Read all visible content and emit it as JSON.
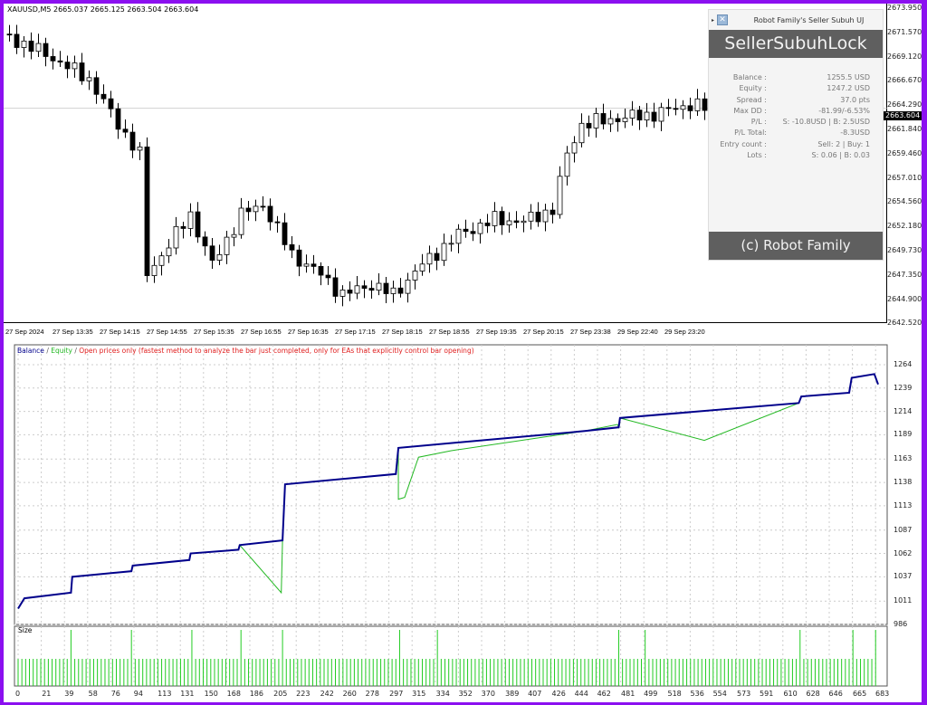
{
  "chart": {
    "symbol_line": "XAUUSD,M5  2665.037 2665.125 2663.504 2663.604",
    "current_price": "2663.604",
    "price_axis": [
      "2673.950",
      "2671.570",
      "2669.120",
      "2666.670",
      "2664.290",
      "2661.840",
      "2659.460",
      "2657.010",
      "2654.560",
      "2652.180",
      "2649.730",
      "2647.350",
      "2644.900",
      "2642.520"
    ],
    "time_axis": [
      "27 Sep 2024",
      "27 Sep 13:35",
      "27 Sep 14:15",
      "27 Sep 14:55",
      "27 Sep 15:35",
      "27 Sep 16:55",
      "27 Sep 16:35",
      "27 Sep 17:15",
      "27 Sep 18:15",
      "27 Sep 18:55",
      "27 Sep 19:35",
      "27 Sep 20:15",
      "27 Sep 23:38",
      "29 Sep 22:40",
      "29 Sep 23:20"
    ],
    "price_path": [
      [
        0,
        2671
      ],
      [
        6,
        2669
      ],
      [
        12,
        2666.5
      ],
      [
        16,
        2662
      ],
      [
        19,
        2659
      ],
      [
        20,
        2647
      ],
      [
        23,
        2650
      ],
      [
        26,
        2653
      ],
      [
        29,
        2648
      ],
      [
        33,
        2653
      ],
      [
        36,
        2654
      ],
      [
        40,
        2649
      ],
      [
        44,
        2647
      ],
      [
        47,
        2645
      ],
      [
        51,
        2646
      ],
      [
        54,
        2645
      ],
      [
        58,
        2648
      ],
      [
        63,
        2651
      ],
      [
        68,
        2652.5
      ],
      [
        72,
        2652.3
      ],
      [
        76,
        2653.5
      ],
      [
        78,
        2659
      ],
      [
        80,
        2662
      ],
      [
        85,
        2662.6
      ],
      [
        90,
        2663
      ],
      [
        95,
        2664
      ],
      [
        97,
        2663.6
      ]
    ]
  },
  "panel": {
    "title": "Robot Family's Seller Subuh UJ",
    "name": "SellerSubuhLock",
    "stats": [
      {
        "label": "Balance :",
        "value": "1255.5 USD"
      },
      {
        "label": "Equity :",
        "value": "1247.2 USD"
      },
      {
        "label": "Spread :",
        "value": "37.0 pts"
      },
      {
        "label": "Max DD :",
        "value": "-81.99/-6.53%"
      },
      {
        "label": "P/L :",
        "value": "S: -10.8USD | B: 2.5USD"
      },
      {
        "label": "P/L Total:",
        "value": "-8.3USD"
      },
      {
        "label": "Entry count :",
        "value": "Sell: 2 | Buy: 1"
      },
      {
        "label": "Lots :",
        "value": "S: 0.06 | B: 0.03"
      }
    ],
    "footer": "(c) Robot Family"
  },
  "tester": {
    "legend_balance": "Balance",
    "legend_equity": "Equity",
    "legend_rest": "Open prices only (fastest method to analyze the bar just completed, only for EAs that explicitly control bar opening)",
    "size_label": "Size",
    "y_axis": [
      "1264",
      "1239",
      "1214",
      "1189",
      "1163",
      "1138",
      "1113",
      "1087",
      "1062",
      "1037",
      "1011",
      "986"
    ],
    "x_axis": [
      "0",
      "21",
      "39",
      "58",
      "76",
      "94",
      "113",
      "131",
      "150",
      "168",
      "186",
      "205",
      "223",
      "242",
      "260",
      "278",
      "297",
      "315",
      "334",
      "352",
      "370",
      "389",
      "407",
      "426",
      "444",
      "462",
      "481",
      "499",
      "518",
      "536",
      "554",
      "573",
      "591",
      "610",
      "628",
      "646",
      "665",
      "683"
    ],
    "ylim": [
      986,
      1264
    ],
    "balance": [
      [
        0,
        1003
      ],
      [
        5,
        1014
      ],
      [
        42,
        1020
      ],
      [
        43,
        1037
      ],
      [
        90,
        1043
      ],
      [
        91,
        1049
      ],
      [
        136,
        1055
      ],
      [
        137,
        1062
      ],
      [
        175,
        1066
      ],
      [
        176,
        1071
      ],
      [
        210,
        1076
      ],
      [
        212,
        1136
      ],
      [
        300,
        1147
      ],
      [
        302,
        1175
      ],
      [
        450,
        1193
      ],
      [
        477,
        1197
      ],
      [
        478,
        1207
      ],
      [
        620,
        1223
      ],
      [
        622,
        1230
      ],
      [
        660,
        1234
      ],
      [
        662,
        1250
      ],
      [
        680,
        1254
      ],
      [
        683,
        1243
      ]
    ],
    "equity_dips": [
      [
        209,
        1020
      ],
      [
        302,
        1120
      ],
      [
        307,
        1122
      ],
      [
        318,
        1165
      ],
      [
        344,
        1172
      ],
      [
        476,
        1200
      ],
      [
        545,
        1183
      ]
    ],
    "tall_size_trades": [
      43,
      91,
      137,
      176,
      210,
      302,
      334,
      478,
      499,
      622,
      662,
      681
    ],
    "colors": {
      "balance": "#00008b",
      "equity": "#22b822",
      "size": "#22cc22",
      "frame": "#8b10f0"
    }
  }
}
